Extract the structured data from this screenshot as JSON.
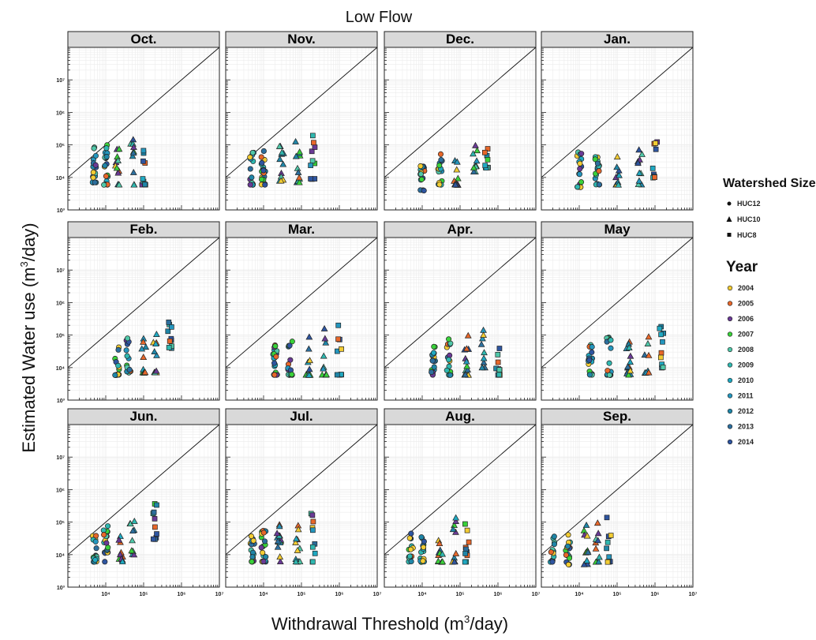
{
  "title": "Low Flow",
  "colors": {
    "strip_fill": "#d9d9d9",
    "grid": "#ececec",
    "years": {
      "2004": "#f2cc33",
      "2005": "#e8672a",
      "2006": "#6a3a96",
      "2007": "#39d13a",
      "2008": "#4fc7a8",
      "2009": "#2fb8b0",
      "2010": "#1fa9c2",
      "2011": "#2496be",
      "2012": "#1f86a8",
      "2013": "#2c6f9e",
      "2014": "#2e55a0"
    }
  },
  "legend": {
    "shape_title": "Watershed Size",
    "shapes": [
      {
        "label": "HUC12",
        "shape": "circle"
      },
      {
        "label": "HUC10",
        "shape": "triangle"
      },
      {
        "label": "HUC8",
        "shape": "square"
      }
    ],
    "year_title": "Year",
    "years": [
      "2004",
      "2005",
      "2006",
      "2007",
      "2008",
      "2009",
      "2010",
      "2011",
      "2012",
      "2013",
      "2014"
    ]
  },
  "chart_data": {
    "type": "scatter",
    "facet_by": "month",
    "xlabel": "Withdrawal Threshold (m3/day)",
    "ylabel": "Estimated Water use (m3/day)",
    "xscale": "log",
    "yscale": "log",
    "reference_line": "y = x",
    "grid": true,
    "legend_position": "right",
    "panels": [
      {
        "month": "Oct.",
        "xlim": [
          1000,
          10000000
        ],
        "ylim": [
          100,
          10000000
        ],
        "x_ticks": [
          "10⁴",
          "10⁵",
          "10⁶",
          "10⁷"
        ],
        "clusters": [
          {
            "x": 5000,
            "shape": "circle",
            "y_range": [
              700,
              9000
            ],
            "n": 18
          },
          {
            "x": 10000,
            "shape": "circle",
            "y_range": [
              600,
              10000
            ],
            "n": 22
          },
          {
            "x": 20000,
            "shape": "triangle",
            "y_range": [
              600,
              9000
            ],
            "n": 12
          },
          {
            "x": 50000,
            "shape": "triangle",
            "y_range": [
              600,
              15000
            ],
            "n": 10
          },
          {
            "x": 100000,
            "shape": "square",
            "y_range": [
              600,
              20000
            ],
            "n": 10
          }
        ]
      },
      {
        "month": "Nov.",
        "xlim": [
          1000,
          10000000
        ],
        "ylim": [
          100,
          10000000
        ],
        "x_ticks": [
          "10⁴",
          "10⁵",
          "10⁶",
          "10⁷"
        ],
        "clusters": [
          {
            "x": 5000,
            "shape": "circle",
            "y_range": [
              600,
              6000
            ],
            "n": 16
          },
          {
            "x": 10000,
            "shape": "circle",
            "y_range": [
              600,
              8000
            ],
            "n": 20
          },
          {
            "x": 30000,
            "shape": "triangle",
            "y_range": [
              800,
              10000
            ],
            "n": 12
          },
          {
            "x": 80000,
            "shape": "triangle",
            "y_range": [
              700,
              18000
            ],
            "n": 12
          },
          {
            "x": 200000,
            "shape": "square",
            "y_range": [
              900,
              20000
            ],
            "n": 10
          }
        ]
      },
      {
        "month": "Dec.",
        "xlim": [
          1000,
          10000000
        ],
        "ylim": [
          100,
          10000000
        ],
        "x_ticks": [
          "10⁴",
          "10⁵",
          "10⁶",
          "10⁷"
        ],
        "clusters": [
          {
            "x": 10000,
            "shape": "circle",
            "y_range": [
              400,
              3500
            ],
            "n": 18
          },
          {
            "x": 30000,
            "shape": "circle",
            "y_range": [
              600,
              6000
            ],
            "n": 18
          },
          {
            "x": 80000,
            "shape": "triangle",
            "y_range": [
              600,
              7000
            ],
            "n": 12
          },
          {
            "x": 250000,
            "shape": "triangle",
            "y_range": [
              1500,
              10000
            ],
            "n": 10
          },
          {
            "x": 500000,
            "shape": "square",
            "y_range": [
              2000,
              15000
            ],
            "n": 9
          }
        ]
      },
      {
        "month": "Jan.",
        "xlim": [
          1000,
          10000000
        ],
        "ylim": [
          100,
          10000000
        ],
        "x_ticks": [
          "10⁴",
          "10⁵",
          "10⁶",
          "10⁷"
        ],
        "clusters": [
          {
            "x": 10000,
            "shape": "circle",
            "y_range": [
              500,
              6000
            ],
            "n": 18
          },
          {
            "x": 30000,
            "shape": "circle",
            "y_range": [
              600,
              5000
            ],
            "n": 18
          },
          {
            "x": 100000,
            "shape": "triangle",
            "y_range": [
              600,
              6000
            ],
            "n": 12
          },
          {
            "x": 400000,
            "shape": "triangle",
            "y_range": [
              600,
              9000
            ],
            "n": 10
          },
          {
            "x": 1000000,
            "shape": "square",
            "y_range": [
              1000,
              14000
            ],
            "n": 9
          }
        ]
      },
      {
        "month": "Feb.",
        "xlim": [
          1000,
          10000000
        ],
        "ylim": [
          100,
          10000000
        ],
        "x_ticks": [
          "10⁴",
          "10⁵",
          "10⁶",
          "10⁷"
        ],
        "clusters": [
          {
            "x": 20000,
            "shape": "circle",
            "y_range": [
              600,
              5000
            ],
            "n": 18
          },
          {
            "x": 40000,
            "shape": "circle",
            "y_range": [
              700,
              8000
            ],
            "n": 14
          },
          {
            "x": 100000,
            "shape": "triangle",
            "y_range": [
              700,
              8000
            ],
            "n": 10
          },
          {
            "x": 200000,
            "shape": "triangle",
            "y_range": [
              700,
              15000
            ],
            "n": 10
          },
          {
            "x": 500000,
            "shape": "square",
            "y_range": [
              4000,
              25000
            ],
            "n": 10
          }
        ]
      },
      {
        "month": "Mar.",
        "xlim": [
          1000,
          10000000
        ],
        "ylim": [
          100,
          10000000
        ],
        "x_ticks": [
          "10⁴",
          "10⁵",
          "10⁶",
          "10⁷"
        ],
        "clusters": [
          {
            "x": 20000,
            "shape": "circle",
            "y_range": [
              600,
              5000
            ],
            "n": 20
          },
          {
            "x": 50000,
            "shape": "circle",
            "y_range": [
              600,
              9000
            ],
            "n": 18
          },
          {
            "x": 150000,
            "shape": "triangle",
            "y_range": [
              600,
              10000
            ],
            "n": 14
          },
          {
            "x": 400000,
            "shape": "triangle",
            "y_range": [
              600,
              20000
            ],
            "n": 10
          },
          {
            "x": 1000000,
            "shape": "square",
            "y_range": [
              600,
              25000
            ],
            "n": 10
          }
        ]
      },
      {
        "month": "Apr.",
        "xlim": [
          1000,
          10000000
        ],
        "ylim": [
          100,
          10000000
        ],
        "x_ticks": [
          "10⁴",
          "10⁵",
          "10⁶",
          "10⁷"
        ],
        "clusters": [
          {
            "x": 20000,
            "shape": "circle",
            "y_range": [
              600,
              5000
            ],
            "n": 18
          },
          {
            "x": 50000,
            "shape": "circle",
            "y_range": [
              600,
              8000
            ],
            "n": 16
          },
          {
            "x": 150000,
            "shape": "triangle",
            "y_range": [
              600,
              10000
            ],
            "n": 14
          },
          {
            "x": 400000,
            "shape": "triangle",
            "y_range": [
              1000,
              20000
            ],
            "n": 10
          },
          {
            "x": 1000000,
            "shape": "square",
            "y_range": [
              600,
              30000
            ],
            "n": 10
          }
        ]
      },
      {
        "month": "May",
        "xlim": [
          1000,
          10000000
        ],
        "ylim": [
          100,
          10000000
        ],
        "x_ticks": [
          "10⁴",
          "10⁵",
          "10⁶",
          "10⁷"
        ],
        "clusters": [
          {
            "x": 20000,
            "shape": "circle",
            "y_range": [
              600,
              5000
            ],
            "n": 18
          },
          {
            "x": 60000,
            "shape": "circle",
            "y_range": [
              600,
              9000
            ],
            "n": 16
          },
          {
            "x": 200000,
            "shape": "triangle",
            "y_range": [
              600,
              7000
            ],
            "n": 14
          },
          {
            "x": 600000,
            "shape": "triangle",
            "y_range": [
              700,
              10000
            ],
            "n": 10
          },
          {
            "x": 1500000,
            "shape": "square",
            "y_range": [
              1000,
              20000
            ],
            "n": 10
          }
        ]
      },
      {
        "month": "Jun.",
        "xlim": [
          1000,
          10000000
        ],
        "ylim": [
          100,
          10000000
        ],
        "x_ticks": [
          "10⁴",
          "10⁵",
          "10⁶",
          "10⁷"
        ],
        "clusters": [
          {
            "x": 5000,
            "shape": "circle",
            "y_range": [
              600,
              4000
            ],
            "n": 16
          },
          {
            "x": 10000,
            "shape": "circle",
            "y_range": [
              600,
              8000
            ],
            "n": 18
          },
          {
            "x": 25000,
            "shape": "triangle",
            "y_range": [
              600,
              6000
            ],
            "n": 10
          },
          {
            "x": 50000,
            "shape": "triangle",
            "y_range": [
              1000,
              15000
            ],
            "n": 10
          },
          {
            "x": 200000,
            "shape": "square",
            "y_range": [
              3000,
              40000
            ],
            "n": 10
          }
        ]
      },
      {
        "month": "Jul.",
        "xlim": [
          1000,
          10000000
        ],
        "ylim": [
          100,
          10000000
        ],
        "x_ticks": [
          "10⁴",
          "10⁵",
          "10⁶",
          "10⁷"
        ],
        "clusters": [
          {
            "x": 5000,
            "shape": "circle",
            "y_range": [
              600,
              4000
            ],
            "n": 18
          },
          {
            "x": 10000,
            "shape": "circle",
            "y_range": [
              600,
              6000
            ],
            "n": 20
          },
          {
            "x": 25000,
            "shape": "triangle",
            "y_range": [
              600,
              9000
            ],
            "n": 14
          },
          {
            "x": 80000,
            "shape": "triangle",
            "y_range": [
              600,
              15000
            ],
            "n": 12
          },
          {
            "x": 200000,
            "shape": "square",
            "y_range": [
              600,
              20000
            ],
            "n": 10
          }
        ]
      },
      {
        "month": "Aug.",
        "xlim": [
          1000,
          10000000
        ],
        "ylim": [
          100,
          10000000
        ],
        "x_ticks": [
          "10⁴",
          "10⁵",
          "10⁶",
          "10⁷"
        ],
        "clusters": [
          {
            "x": 5000,
            "shape": "circle",
            "y_range": [
              600,
              5000
            ],
            "n": 16
          },
          {
            "x": 10000,
            "shape": "circle",
            "y_range": [
              600,
              6000
            ],
            "n": 18
          },
          {
            "x": 30000,
            "shape": "triangle",
            "y_range": [
              600,
              10000
            ],
            "n": 12
          },
          {
            "x": 70000,
            "shape": "triangle",
            "y_range": [
              600,
              15000
            ],
            "n": 10
          },
          {
            "x": 150000,
            "shape": "square",
            "y_range": [
              600,
              25000
            ],
            "n": 10
          }
        ]
      },
      {
        "month": "Sep.",
        "xlim": [
          1000,
          10000000
        ],
        "ylim": [
          100,
          10000000
        ],
        "x_ticks": [
          "10⁴",
          "10⁵",
          "10⁶",
          "10⁷"
        ],
        "clusters": [
          {
            "x": 2000,
            "shape": "circle",
            "y_range": [
              600,
              4000
            ],
            "n": 14
          },
          {
            "x": 5000,
            "shape": "circle",
            "y_range": [
              500,
              5000
            ],
            "n": 18
          },
          {
            "x": 15000,
            "shape": "triangle",
            "y_range": [
              500,
              9000
            ],
            "n": 12
          },
          {
            "x": 30000,
            "shape": "triangle",
            "y_range": [
              600,
              10000
            ],
            "n": 10
          },
          {
            "x": 60000,
            "shape": "square",
            "y_range": [
              600,
              15000
            ],
            "n": 10
          }
        ]
      }
    ],
    "y_ticks": [
      "10³",
      "10⁴",
      "10⁵",
      "10⁶",
      "10⁷"
    ]
  }
}
